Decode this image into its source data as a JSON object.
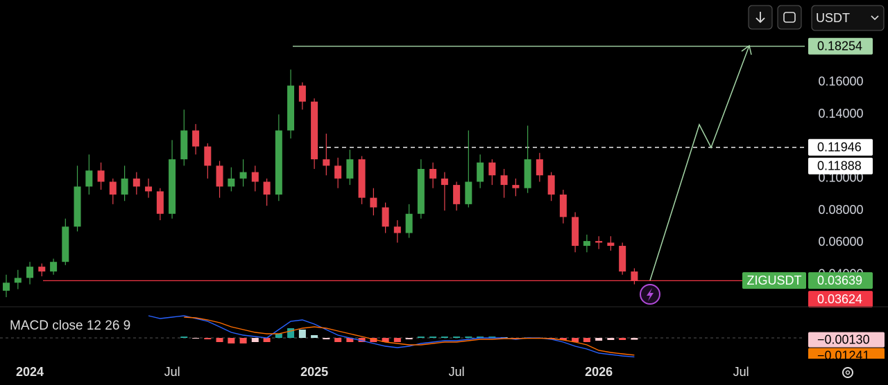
{
  "ui": {
    "currency": "USDT"
  },
  "chart_data": [
    {
      "type": "candlestick",
      "symbol": "ZIGUSDT",
      "x": [
        2023.917,
        2023.958,
        2024.0,
        2024.042,
        2024.083,
        2024.125,
        2024.167,
        2024.208,
        2024.25,
        2024.292,
        2024.333,
        2024.375,
        2024.417,
        2024.458,
        2024.5,
        2024.542,
        2024.583,
        2024.625,
        2024.667,
        2024.708,
        2024.75,
        2024.792,
        2024.833,
        2024.875,
        2024.917,
        2024.958,
        2025.0,
        2025.042,
        2025.083,
        2025.125,
        2025.167,
        2025.208,
        2025.25,
        2025.292,
        2025.333,
        2025.375,
        2025.417,
        2025.458,
        2025.5,
        2025.542,
        2025.583,
        2025.625,
        2025.667,
        2025.708,
        2025.75,
        2025.792,
        2025.833,
        2025.875,
        2025.917,
        2025.958,
        2026.0,
        2026.042,
        2026.083,
        2026.125
      ],
      "open": [
        0.03,
        0.035,
        0.038,
        0.045,
        0.042,
        0.048,
        0.07,
        0.095,
        0.105,
        0.098,
        0.09,
        0.1,
        0.095,
        0.092,
        0.078,
        0.112,
        0.13,
        0.12,
        0.108,
        0.095,
        0.1,
        0.104,
        0.098,
        0.09,
        0.13,
        0.158,
        0.148,
        0.112,
        0.108,
        0.1,
        0.112,
        0.088,
        0.082,
        0.07,
        0.066,
        0.078,
        0.106,
        0.1,
        0.096,
        0.084,
        0.098,
        0.11,
        0.102,
        0.096,
        0.094,
        0.112,
        0.102,
        0.09,
        0.076,
        0.058,
        0.061,
        0.06,
        0.058,
        0.042
      ],
      "high": [
        0.04,
        0.043,
        0.048,
        0.047,
        0.05,
        0.075,
        0.108,
        0.115,
        0.11,
        0.1,
        0.108,
        0.104,
        0.1,
        0.094,
        0.124,
        0.143,
        0.134,
        0.122,
        0.111,
        0.107,
        0.112,
        0.108,
        0.1,
        0.14,
        0.168,
        0.16,
        0.15,
        0.128,
        0.113,
        0.118,
        0.114,
        0.094,
        0.085,
        0.074,
        0.084,
        0.112,
        0.11,
        0.104,
        0.098,
        0.13,
        0.115,
        0.112,
        0.106,
        0.1,
        0.133,
        0.116,
        0.104,
        0.093,
        0.079,
        0.065,
        0.064,
        0.064,
        0.06,
        0.044
      ],
      "low": [
        0.026,
        0.031,
        0.034,
        0.039,
        0.04,
        0.046,
        0.067,
        0.09,
        0.093,
        0.084,
        0.086,
        0.09,
        0.088,
        0.074,
        0.075,
        0.108,
        0.115,
        0.1,
        0.088,
        0.092,
        0.095,
        0.092,
        0.083,
        0.086,
        0.125,
        0.143,
        0.106,
        0.102,
        0.094,
        0.096,
        0.084,
        0.077,
        0.066,
        0.06,
        0.063,
        0.075,
        0.094,
        0.08,
        0.08,
        0.082,
        0.094,
        0.096,
        0.088,
        0.089,
        0.091,
        0.098,
        0.086,
        0.072,
        0.054,
        0.054,
        0.056,
        0.055,
        0.04,
        0.034
      ],
      "close": [
        0.035,
        0.038,
        0.045,
        0.042,
        0.048,
        0.07,
        0.095,
        0.105,
        0.098,
        0.09,
        0.1,
        0.095,
        0.092,
        0.078,
        0.112,
        0.13,
        0.12,
        0.108,
        0.095,
        0.1,
        0.104,
        0.098,
        0.09,
        0.13,
        0.158,
        0.148,
        0.112,
        0.108,
        0.1,
        0.112,
        0.088,
        0.082,
        0.07,
        0.066,
        0.078,
        0.106,
        0.1,
        0.096,
        0.084,
        0.098,
        0.11,
        0.102,
        0.096,
        0.094,
        0.112,
        0.102,
        0.09,
        0.076,
        0.058,
        0.061,
        0.06,
        0.058,
        0.042,
        0.03639
      ],
      "up_color": "#3fa34d",
      "down_color": "#e8434f",
      "xlim": [
        2023.895,
        2026.724
      ],
      "xticks": [
        {
          "value": 2024,
          "label": "2024"
        },
        {
          "value": 2024.5,
          "label": "Jul"
        },
        {
          "value": 2025,
          "label": "2025"
        },
        {
          "value": 2025.5,
          "label": "Jul"
        },
        {
          "value": 2026,
          "label": "2026"
        },
        {
          "value": 2026.5,
          "label": "Jul"
        }
      ],
      "ylim": [
        0.02,
        0.2114
      ],
      "yticks": [
        {
          "value": 0.04,
          "label": "0.04000"
        },
        {
          "value": 0.06,
          "label": "0.06000"
        },
        {
          "value": 0.08,
          "label": "0.08000"
        },
        {
          "value": 0.1,
          "label": "0.10000"
        },
        {
          "value": 0.14,
          "label": "0.14000"
        },
        {
          "value": 0.16,
          "label": "0.16000"
        }
      ],
      "price_lines": [
        {
          "value": 0.18254,
          "color": "#a5d6a7",
          "text_color": "#000000",
          "line": "solid"
        },
        {
          "value": 0.11946,
          "color": "#ffffff",
          "text_color": "#000000",
          "line": "dashed"
        },
        {
          "value": 0.11888,
          "color": "#ffffff",
          "text_color": "#000000",
          "line": "none"
        },
        {
          "value": 0.03639,
          "color": "#4caf50",
          "text_color": "#ffffff",
          "line": "none"
        },
        {
          "value": 0.03624,
          "color": "#f23645",
          "text_color": "#ffffff",
          "line": "solid"
        }
      ]
    },
    {
      "type": "macd",
      "title": "MACD close 12 26 9",
      "macd": [
        null,
        null,
        null,
        null,
        null,
        null,
        null,
        null,
        null,
        null,
        null,
        null,
        0.016,
        0.014,
        0.015,
        0.016,
        0.014,
        0.012,
        0.008,
        0.004,
        0.002,
        0.001,
        0.0,
        0.006,
        0.012,
        0.013,
        0.01,
        0.006,
        0.002,
        0.0,
        -0.002,
        -0.004,
        -0.006,
        -0.007,
        -0.006,
        -0.004,
        -0.003,
        -0.002,
        -0.002,
        -0.001,
        0.0,
        0.0,
        0.0,
        -0.001,
        0.0,
        0.0,
        -0.001,
        -0.003,
        -0.006,
        -0.008,
        -0.011,
        -0.012,
        -0.013,
        -0.01371
      ],
      "signal": [
        null,
        null,
        null,
        null,
        null,
        null,
        null,
        null,
        null,
        null,
        null,
        null,
        null,
        null,
        null,
        0.015,
        0.0145,
        0.013,
        0.011,
        0.008,
        0.006,
        0.004,
        0.003,
        0.003,
        0.005,
        0.007,
        0.008,
        0.007,
        0.005,
        0.003,
        0.001,
        -0.001,
        -0.003,
        -0.004,
        -0.005,
        -0.005,
        -0.004,
        -0.003,
        -0.003,
        -0.002,
        -0.001,
        -0.001,
        -0.0005,
        -0.0005,
        -0.0003,
        -0.0002,
        -0.0005,
        -0.0015,
        -0.003,
        -0.005,
        -0.009,
        -0.0105,
        -0.0115,
        -0.01241
      ],
      "histogram": [
        null,
        null,
        null,
        null,
        null,
        null,
        null,
        null,
        null,
        null,
        null,
        null,
        null,
        null,
        null,
        0.001,
        -0.0005,
        -0.001,
        -0.003,
        -0.004,
        -0.004,
        -0.003,
        -0.003,
        0.003,
        0.007,
        0.006,
        0.002,
        -0.001,
        -0.003,
        -0.003,
        -0.003,
        -0.003,
        -0.003,
        -0.003,
        -0.001,
        0.001,
        0.001,
        0.001,
        0.001,
        0.001,
        0.001,
        0.001,
        0.0005,
        -0.0005,
        0.0003,
        0.0002,
        -0.0005,
        -0.0015,
        -0.003,
        -0.003,
        -0.002,
        -0.0015,
        -0.0015,
        -0.0013
      ],
      "macd_color": "#2962ff",
      "signal_color": "#ff6d00",
      "histogram_colors": [
        "#26a69a",
        "#b2dfdb",
        "#ff5252",
        "#ffcdd2"
      ],
      "ylim": [
        -0.0185,
        0.0215
      ],
      "last_labels": [
        {
          "value": -0.0013,
          "label": "−0.00130",
          "color": "#f8c8d0",
          "text_color": "#000000"
        },
        {
          "value": -0.01241,
          "label": "−0.01241",
          "color": "#f57c00",
          "text_color": "#000000"
        }
      ]
    }
  ]
}
